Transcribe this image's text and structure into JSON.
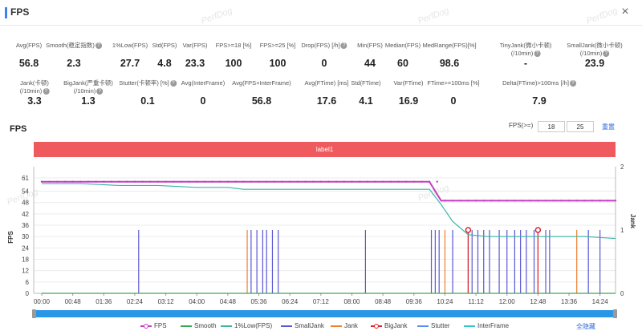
{
  "header": {
    "title": "FPS",
    "close_label": "×"
  },
  "watermarks": [
    "PerfDog",
    "PerfDog",
    "PerfDog",
    "PerfDog",
    "PerfDog"
  ],
  "metrics_row1": [
    {
      "label": "Avg(FPS)",
      "value": "56.8",
      "help": false
    },
    {
      "label": "Smooth(稳定指数)",
      "value": "2.3",
      "help": true
    },
    {
      "label": "1%Low(FPS)",
      "value": "27.7",
      "help": false
    },
    {
      "label": "Std(FPS)",
      "value": "4.8",
      "help": false
    },
    {
      "label": "Var(FPS)",
      "value": "23.3",
      "help": false
    },
    {
      "label": "FPS>=18 [%]",
      "value": "100",
      "help": false
    },
    {
      "label": "FPS>=25 [%]",
      "value": "100",
      "help": false
    },
    {
      "label": "Drop(FPS) [/h]",
      "value": "0",
      "help": true
    },
    {
      "label": "Min(FPS)",
      "value": "44",
      "help": false
    },
    {
      "label": "Median(FPS)",
      "value": "60",
      "help": false
    },
    {
      "label": "MedRange(FPS)[%]",
      "value": "98.6",
      "help": false
    },
    {
      "label": "TinyJank(微小卡顿)",
      "label2": "(/10min)",
      "value": "-",
      "help": true
    },
    {
      "label": "SmallJank(微小卡顿)",
      "label2": "(/10min)",
      "value": "23.9",
      "help": true
    }
  ],
  "metrics_row2": [
    {
      "label": "Jank(卡顿)",
      "label2": "(/10min)",
      "value": "3.3",
      "help": true
    },
    {
      "label": "BigJank(严重卡顿)",
      "label2": "(/10min)",
      "value": "1.3",
      "help": true
    },
    {
      "label": "Stutter(卡顿率) [%]",
      "value": "0.1",
      "help": true
    },
    {
      "label": "Avg(InterFrame)",
      "value": "0",
      "help": false
    },
    {
      "label": "Avg(FPS+InterFrame)",
      "value": "56.8",
      "help": false
    },
    {
      "label": "Avg(FTime) [ms]",
      "value": "17.6",
      "help": false
    },
    {
      "label": "Std(FTime)",
      "value": "4.1",
      "help": false
    },
    {
      "label": "Var(FTime)",
      "value": "16.9",
      "help": false
    },
    {
      "label": "FTime>=100ms [%]",
      "value": "0",
      "help": false
    },
    {
      "label": "Delta(FTime)>100ms [/h]",
      "value": "7.9",
      "help": true
    }
  ],
  "chart_section": {
    "title": "FPS",
    "fps_ctrl_label": "FPS(>=)",
    "fps_value_1": "18",
    "fps_value_2": "25",
    "apply_link": "重置",
    "label_band": "label1",
    "legend_toggle": "全隐藏"
  },
  "chart_data": {
    "type": "line",
    "ylabel_left": "FPS",
    "ylabel_right": "Jank",
    "yticks_left": [
      0,
      6,
      12,
      18,
      24,
      30,
      36,
      42,
      48,
      54,
      61
    ],
    "yticks_right": [
      0,
      1,
      2
    ],
    "xticks": [
      "00:00",
      "00:48",
      "01:36",
      "02:24",
      "03:12",
      "04:00",
      "04:48",
      "05:36",
      "06:24",
      "07:12",
      "08:00",
      "08:48",
      "09:36",
      "10:24",
      "11:12",
      "12:00",
      "12:48",
      "13:36",
      "14:24"
    ],
    "series": [
      {
        "name": "FPS",
        "color": "#c33fc3",
        "x": [
          0,
          1,
          2,
          3,
          4,
          5,
          6,
          7,
          8,
          9,
          10,
          10.3,
          10.5,
          11,
          11.5,
          12,
          12.5,
          13,
          13.5,
          14,
          14.4,
          14.8
        ],
        "y": [
          59,
          59,
          59,
          59,
          59,
          59,
          59,
          59,
          59,
          59,
          59,
          49,
          49,
          49,
          49,
          49,
          49,
          49,
          49,
          49,
          49,
          49
        ]
      },
      {
        "name": "Smooth",
        "color": "#3aa65a",
        "x": [
          0,
          1,
          2,
          3,
          4,
          5,
          6,
          7,
          8,
          9,
          10,
          10.3,
          11,
          12,
          13,
          14,
          14.8
        ],
        "y": [
          0,
          0,
          0,
          0,
          0,
          0,
          0,
          0,
          0,
          0,
          0,
          0,
          0,
          0,
          0,
          0,
          0
        ]
      },
      {
        "name": "1%Low(FPS)",
        "color": "#3bb3a6",
        "x": [
          0,
          1,
          2,
          3,
          4,
          4.8,
          5.2,
          6,
          7,
          8,
          9,
          10,
          10.3,
          10.6,
          11,
          11.5,
          12,
          13,
          14,
          14.8
        ],
        "y": [
          58,
          58,
          57,
          57,
          56,
          56,
          55,
          55,
          55,
          55,
          55,
          55,
          47,
          38,
          31,
          30,
          30,
          30,
          30,
          29
        ]
      },
      {
        "name": "SmallJank",
        "color": "#5a56d6",
        "x": [],
        "y": []
      },
      {
        "name": "Jank",
        "color": "#f07f2e",
        "x": [],
        "y": []
      },
      {
        "name": "BigJank",
        "color": "#d9232e",
        "x": [],
        "y": []
      },
      {
        "name": "Stutter",
        "color": "#5b8ff0",
        "x": [],
        "y": []
      },
      {
        "name": "InterFrame",
        "color": "#33c6c6",
        "x": [],
        "y": []
      }
    ],
    "jank_spikes": {
      "smalljank_x": [
        2.5,
        5.4,
        5.55,
        5.7,
        5.8,
        5.95,
        6.1,
        8.35,
        10.05,
        10.15,
        10.25,
        10.6,
        11.0,
        11.1,
        11.25,
        11.4,
        11.55,
        11.8,
        12.0,
        12.2,
        12.35,
        12.5,
        12.7,
        13.0,
        13.1,
        14.1,
        14.4
      ],
      "jank_x": [
        5.3,
        10.4,
        12.8,
        13.8
      ],
      "bigjank_x": [
        11.0,
        12.8
      ]
    },
    "ylim_left": [
      0,
      61
    ],
    "ylim_right": [
      0,
      2
    ],
    "grid": true,
    "legend_position": "bottom"
  },
  "legend": [
    {
      "name": "FPS",
      "color": "#c33fc3",
      "dot": true
    },
    {
      "name": "Smooth",
      "color": "#3aa65a",
      "dot": false
    },
    {
      "name": "1%Low(FPS)",
      "color": "#3bb3a6",
      "dot": false
    },
    {
      "name": "SmallJank",
      "color": "#5a56d6",
      "dot": false
    },
    {
      "name": "Jank",
      "color": "#f07f2e",
      "dot": false
    },
    {
      "name": "BigJank",
      "color": "#d9232e",
      "dot": true
    },
    {
      "name": "Stutter",
      "color": "#5b8ff0",
      "dot": false
    },
    {
      "name": "InterFrame",
      "color": "#33c6c6",
      "dot": false
    }
  ],
  "colors": {
    "accent": "#3b82f6",
    "band": "#ef5a5f",
    "link": "#2b6be0",
    "scroll": "#2a96e8"
  }
}
